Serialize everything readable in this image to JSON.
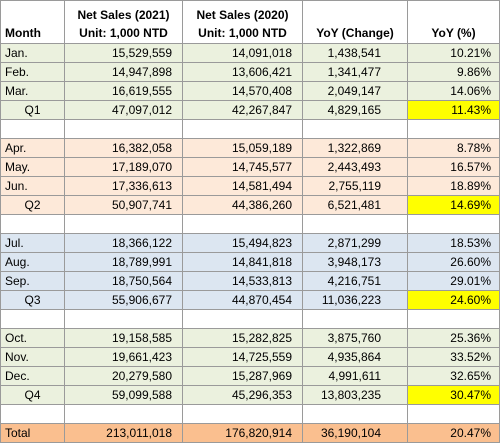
{
  "header": {
    "month": "Month",
    "net2021_line1": "Net Sales (2021)",
    "net2021_line2": "Unit: 1,000 NTD",
    "net2020_line1": "Net Sales (2020)",
    "net2020_line2": "Unit: 1,000 NTD",
    "yoy_change": "YoY (Change)",
    "yoy_pct": "YoY (%)"
  },
  "groups": [
    {
      "rows": [
        {
          "month": "Jan.",
          "s2021": "15,529,559",
          "s2020": "14,091,018",
          "change": "1,438,541",
          "pct": "10.21%"
        },
        {
          "month": "Feb.",
          "s2021": "14,947,898",
          "s2020": "13,606,421",
          "change": "1,341,477",
          "pct": "9.86%"
        },
        {
          "month": "Mar.",
          "s2021": "16,619,555",
          "s2020": "14,570,408",
          "change": "2,049,147",
          "pct": "14.06%"
        }
      ],
      "quarter": {
        "month": "Q1",
        "s2021": "47,097,012",
        "s2020": "42,267,847",
        "change": "4,829,165",
        "pct": "11.43%"
      }
    },
    {
      "rows": [
        {
          "month": "Apr.",
          "s2021": "16,382,058",
          "s2020": "15,059,189",
          "change": "1,322,869",
          "pct": "8.78%"
        },
        {
          "month": "May.",
          "s2021": "17,189,070",
          "s2020": "14,745,577",
          "change": "2,443,493",
          "pct": "16.57%"
        },
        {
          "month": "Jun.",
          "s2021": "17,336,613",
          "s2020": "14,581,494",
          "change": "2,755,119",
          "pct": "18.89%"
        }
      ],
      "quarter": {
        "month": "Q2",
        "s2021": "50,907,741",
        "s2020": "44,386,260",
        "change": "6,521,481",
        "pct": "14.69%"
      }
    },
    {
      "rows": [
        {
          "month": "Jul.",
          "s2021": "18,366,122",
          "s2020": "15,494,823",
          "change": "2,871,299",
          "pct": "18.53%"
        },
        {
          "month": "Aug.",
          "s2021": "18,789,991",
          "s2020": "14,841,818",
          "change": "3,948,173",
          "pct": "26.60%"
        },
        {
          "month": "Sep.",
          "s2021": "18,750,564",
          "s2020": "14,533,813",
          "change": "4,216,751",
          "pct": "29.01%"
        }
      ],
      "quarter": {
        "month": "Q3",
        "s2021": "55,906,677",
        "s2020": "44,870,454",
        "change": "11,036,223",
        "pct": "24.60%"
      }
    },
    {
      "rows": [
        {
          "month": "Oct.",
          "s2021": "19,158,585",
          "s2020": "15,282,825",
          "change": "3,875,760",
          "pct": "25.36%"
        },
        {
          "month": "Nov.",
          "s2021": "19,661,423",
          "s2020": "14,725,559",
          "change": "4,935,864",
          "pct": "33.52%"
        },
        {
          "month": "Dec.",
          "s2021": "20,279,580",
          "s2020": "15,287,969",
          "change": "4,991,611",
          "pct": "32.65%"
        }
      ],
      "quarter": {
        "month": "Q4",
        "s2021": "59,099,588",
        "s2020": "45,296,353",
        "change": "13,803,235",
        "pct": "30.47%"
      }
    }
  ],
  "total": {
    "month": "Total",
    "s2021": "213,011,018",
    "s2020": "176,820,914",
    "change": "36,190,104",
    "pct": "20.47%"
  },
  "colors": {
    "q_highlight": "#ffff00",
    "group1": "#ebf1de",
    "group2": "#fde9d9",
    "group3": "#dce6f1",
    "group4": "#ebf1de",
    "total": "#fabf8f"
  }
}
